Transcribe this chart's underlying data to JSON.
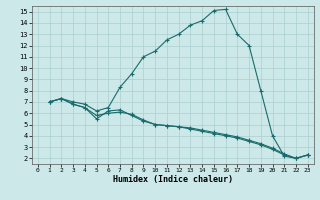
{
  "xlabel": "Humidex (Indice chaleur)",
  "bg_color": "#cce8e8",
  "line_color": "#1a6b6b",
  "grid_color": "#aacfcf",
  "xlim": [
    -0.5,
    23.5
  ],
  "ylim": [
    1.5,
    15.5
  ],
  "xticks": [
    0,
    1,
    2,
    3,
    4,
    5,
    6,
    7,
    8,
    9,
    10,
    11,
    12,
    13,
    14,
    15,
    16,
    17,
    18,
    19,
    20,
    21,
    22,
    23
  ],
  "yticks": [
    2,
    3,
    4,
    5,
    6,
    7,
    8,
    9,
    10,
    11,
    12,
    13,
    14,
    15
  ],
  "curve1_x": [
    1,
    2,
    3,
    4,
    5,
    6,
    7,
    8,
    9,
    10,
    11,
    12,
    13,
    14,
    15,
    16,
    17,
    18,
    19,
    20,
    21,
    22,
    23
  ],
  "curve1_y": [
    7.0,
    7.3,
    7.0,
    6.8,
    6.2,
    6.5,
    8.3,
    9.5,
    11.0,
    11.5,
    12.5,
    13.0,
    13.8,
    14.2,
    15.1,
    15.2,
    13.0,
    12.0,
    8.0,
    4.0,
    2.2,
    2.0,
    2.3
  ],
  "curve2_x": [
    1,
    2,
    3,
    4,
    5,
    6,
    7,
    8,
    9,
    10,
    11,
    12,
    13,
    14,
    15,
    16,
    17,
    18,
    19,
    20,
    21,
    22,
    23
  ],
  "curve2_y": [
    7.0,
    7.3,
    6.8,
    6.5,
    5.5,
    6.2,
    6.3,
    5.8,
    5.3,
    5.0,
    4.9,
    4.8,
    4.7,
    4.5,
    4.3,
    4.1,
    3.9,
    3.6,
    3.3,
    2.9,
    2.4,
    2.0,
    2.3
  ],
  "curve3_x": [
    1,
    2,
    3,
    4,
    5,
    6,
    7,
    8,
    9,
    10,
    11,
    12,
    13,
    14,
    15,
    16,
    17,
    18,
    19,
    20,
    21,
    22,
    23
  ],
  "curve3_y": [
    7.0,
    7.3,
    6.8,
    6.5,
    5.8,
    6.0,
    6.1,
    5.9,
    5.4,
    5.0,
    4.9,
    4.8,
    4.6,
    4.4,
    4.2,
    4.0,
    3.8,
    3.5,
    3.2,
    2.8,
    2.3,
    2.0,
    2.3
  ]
}
